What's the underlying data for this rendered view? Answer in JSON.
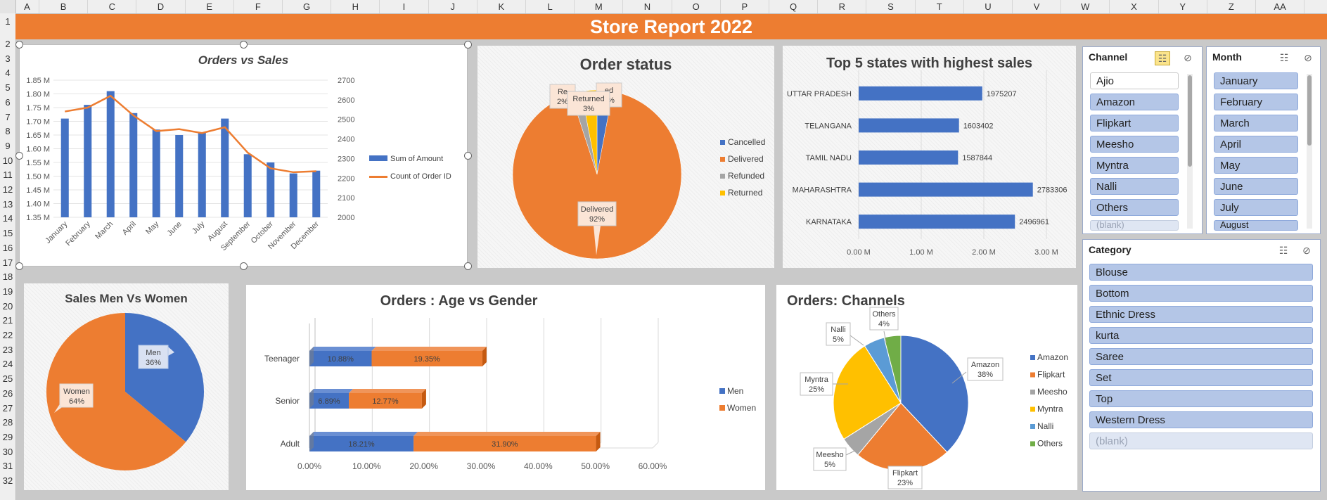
{
  "columns": [
    "A",
    "B",
    "C",
    "D",
    "E",
    "F",
    "G",
    "H",
    "I",
    "J",
    "K",
    "L",
    "M",
    "N",
    "O",
    "P",
    "Q",
    "R",
    "S",
    "T",
    "U",
    "V",
    "W",
    "X",
    "Y",
    "Z",
    "AA"
  ],
  "rows": [
    "1",
    "2",
    "3",
    "4",
    "5",
    "6",
    "7",
    "8",
    "9",
    "10",
    "11",
    "12",
    "13",
    "14",
    "15",
    "16",
    "17",
    "18",
    "19",
    "20",
    "21",
    "22",
    "23",
    "24",
    "25",
    "26",
    "27",
    "28",
    "29",
    "30",
    "31",
    "32"
  ],
  "banner": {
    "title": "Store Report 2022"
  },
  "colors": {
    "accent": "#ed7d31",
    "blue": "#4472c4",
    "gray": "#a5a5a5",
    "yellow": "#ffc000",
    "lightblue": "#5b9bd5",
    "green": "#70ad47"
  },
  "chart_data": [
    {
      "type": "bar",
      "title": "Orders vs Sales",
      "categories": [
        "January",
        "February",
        "March",
        "April",
        "May",
        "June",
        "July",
        "August",
        "September",
        "October",
        "November",
        "December"
      ],
      "series": [
        {
          "name": "Sum of Amount",
          "type": "bar",
          "axis": "left",
          "values": [
            1.71,
            1.76,
            1.81,
            1.73,
            1.67,
            1.65,
            1.66,
            1.71,
            1.58,
            1.55,
            1.51,
            1.52
          ]
        },
        {
          "name": "Count of Order ID",
          "type": "line",
          "axis": "right",
          "values": [
            2540,
            2560,
            2620,
            2520,
            2440,
            2450,
            2430,
            2460,
            2330,
            2250,
            2230,
            2235
          ]
        }
      ],
      "y_left": {
        "ylim": [
          1.35,
          1.85
        ],
        "ticks": [
          "1.35 M",
          "1.40 M",
          "1.45 M",
          "1.50 M",
          "1.55 M",
          "1.60 M",
          "1.65 M",
          "1.70 M",
          "1.75 M",
          "1.80 M",
          "1.85 M"
        ]
      },
      "y_right": {
        "ylim": [
          2000,
          2700
        ],
        "ticks": [
          "2000",
          "2100",
          "2200",
          "2300",
          "2400",
          "2500",
          "2600",
          "2700"
        ]
      },
      "legend": "right"
    },
    {
      "type": "pie",
      "title": "Order status",
      "labels": [
        "Cancelled",
        "Delivered",
        "Refunded",
        "Returned"
      ],
      "values": [
        3,
        92,
        2,
        3
      ],
      "data_labels": [
        {
          "label": "Returned",
          "pct": "3%"
        },
        {
          "label": "Delivered",
          "pct": "92%"
        },
        {
          "label": "Re",
          "pct": "2%"
        },
        {
          "label": "ed",
          "pct": "3%"
        }
      ],
      "legend": "right"
    },
    {
      "type": "bar",
      "orientation": "horizontal",
      "title": "Top 5 states with highest sales",
      "categories": [
        "UTTAR PRADESH",
        "TELANGANA",
        "TAMIL NADU",
        "MAHARASHTRA",
        "KARNATAKA"
      ],
      "values": [
        1975207,
        1603402,
        1587844,
        2783306,
        2496961
      ],
      "xlim": [
        0,
        3000000
      ],
      "xticks": [
        "0.00 M",
        "1.00 M",
        "2.00 M",
        "3.00 M"
      ]
    },
    {
      "type": "pie",
      "title": "Sales Men Vs Women",
      "labels": [
        "Men",
        "Women"
      ],
      "values": [
        36,
        64
      ],
      "data_labels": [
        "Men\n36%",
        "Women\n64%"
      ]
    },
    {
      "type": "bar",
      "orientation": "horizontal",
      "stacked": true,
      "title": "Orders : Age vs Gender",
      "categories": [
        "Teenager",
        "Senior",
        "Adult"
      ],
      "series": [
        {
          "name": "Men",
          "values": [
            10.88,
            6.89,
            18.21
          ],
          "labels": [
            "10.88%",
            "6.89%",
            "18.21%"
          ]
        },
        {
          "name": "Women",
          "values": [
            19.35,
            12.77,
            31.9
          ],
          "labels": [
            "19.35%",
            "12.77%",
            "31.90%"
          ]
        }
      ],
      "xlim": [
        0,
        60
      ],
      "xticks": [
        "0.00%",
        "10.00%",
        "20.00%",
        "30.00%",
        "40.00%",
        "50.00%",
        "60.00%"
      ],
      "legend": "right"
    },
    {
      "type": "pie",
      "title": "Orders: Channels",
      "labels": [
        "Amazon",
        "Flipkart",
        "Meesho",
        "Myntra",
        "Nalli",
        "Others"
      ],
      "values": [
        38,
        23,
        5,
        25,
        5,
        4
      ],
      "pcts": [
        "38%",
        "23%",
        "5%",
        "25%",
        "5%",
        "4%"
      ],
      "legend": "right"
    }
  ],
  "slicers": {
    "channel": {
      "title": "Channel",
      "items": [
        "Ajio",
        "Amazon",
        "Flipkart",
        "Meesho",
        "Myntra",
        "Nalli",
        "Others",
        "(blank)"
      ]
    },
    "month": {
      "title": "Month",
      "items": [
        "January",
        "February",
        "March",
        "April",
        "May",
        "June",
        "July",
        "August"
      ]
    },
    "category": {
      "title": "Category",
      "items": [
        "Blouse",
        "Bottom",
        "Ethnic Dress",
        "kurta",
        "Saree",
        "Set",
        "Top",
        "Western Dress",
        "(blank)"
      ]
    }
  }
}
